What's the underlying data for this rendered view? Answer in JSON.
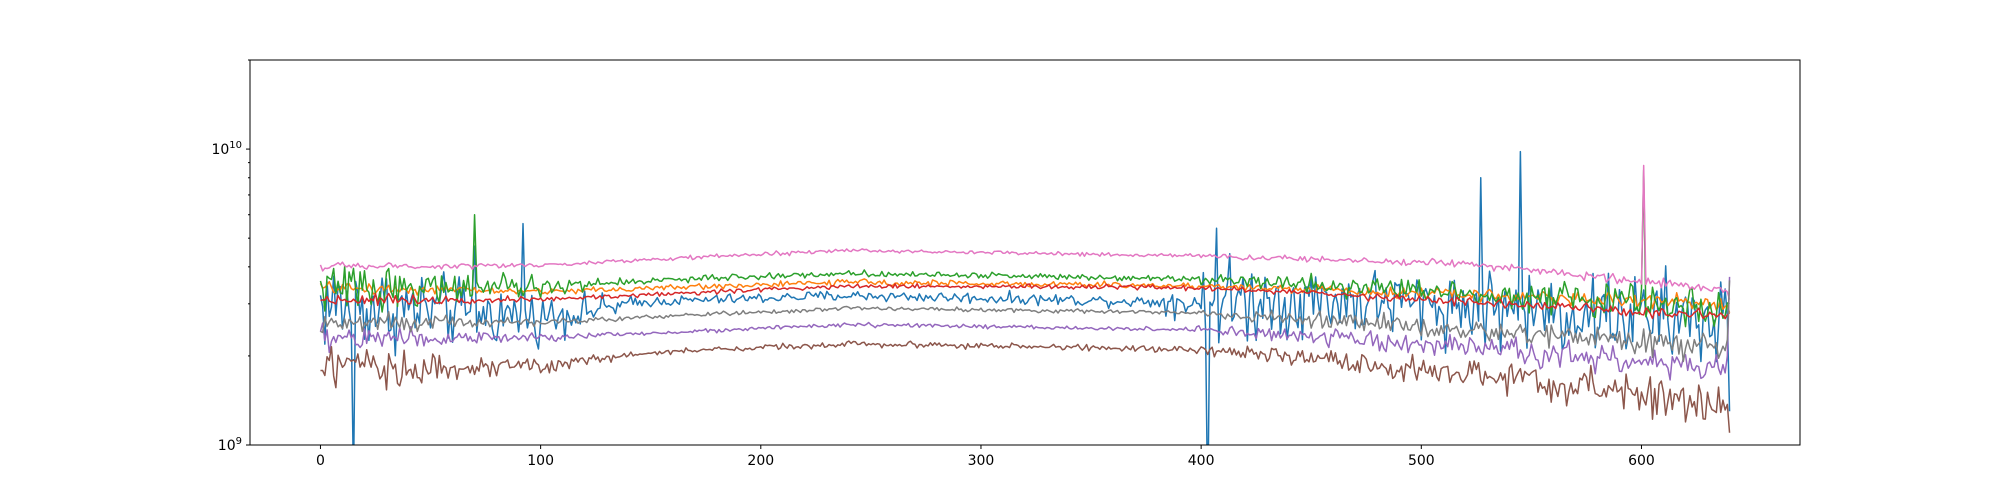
{
  "chart_data": {
    "type": "line",
    "title": "",
    "xlabel": "",
    "ylabel": "",
    "xlim": [
      -32,
      672
    ],
    "ylim": [
      1000000000,
      20000000000
    ],
    "yscale": "log",
    "grid": false,
    "legend": "none",
    "x_ticks": [
      0,
      100,
      200,
      300,
      400,
      500,
      600
    ],
    "x_tick_labels": [
      "0",
      "100",
      "200",
      "300",
      "400",
      "500",
      "600"
    ],
    "y_ticks": [
      1000000000,
      10000000000
    ],
    "y_tick_labels": [
      {
        "base": "10",
        "exp": "9"
      },
      {
        "base": "10",
        "exp": "10"
      }
    ],
    "n_points": 641,
    "series": [
      {
        "color": "#1f77b4",
        "baseline": [
          [
            0,
            3000000000.0
          ],
          [
            100,
            2700000000.0
          ],
          [
            150,
            3050000000.0
          ],
          [
            240,
            3200000000.0
          ],
          [
            380,
            3050000000.0
          ],
          [
            460,
            3100000000.0
          ],
          [
            640,
            2600000000.0
          ]
        ],
        "noise": [
          [
            0,
            0.25
          ],
          [
            100,
            0.12
          ],
          [
            150,
            0.025
          ],
          [
            380,
            0.03
          ],
          [
            410,
            0.22
          ],
          [
            460,
            0.16
          ],
          [
            640,
            0.24
          ]
        ],
        "spikes": [
          [
            70,
            4700000000.0
          ],
          [
            92,
            5600000000.0
          ],
          [
            407,
            5400000000.0
          ],
          [
            545,
            9800000000.0
          ],
          [
            527,
            8000000000.0
          ],
          [
            15,
            750000000.0
          ],
          [
            403,
            600000000.0
          ]
        ],
        "end": 1300000000.0
      },
      {
        "color": "#ff7f0e",
        "baseline": [
          [
            0,
            3400000000.0
          ],
          [
            100,
            3300000000.0
          ],
          [
            240,
            3550000000.0
          ],
          [
            400,
            3450000000.0
          ],
          [
            640,
            3000000000.0
          ]
        ],
        "noise": [
          [
            0,
            0.03
          ],
          [
            100,
            0.015
          ],
          [
            380,
            0.015
          ],
          [
            640,
            0.04
          ]
        ],
        "spikes": [],
        "end": 2800000000.0
      },
      {
        "color": "#2ca02c",
        "baseline": [
          [
            0,
            3400000000.0
          ],
          [
            100,
            3400000000.0
          ],
          [
            150,
            3600000000.0
          ],
          [
            240,
            3800000000.0
          ],
          [
            400,
            3650000000.0
          ],
          [
            640,
            2900000000.0
          ]
        ],
        "noise": [
          [
            0,
            0.12
          ],
          [
            100,
            0.05
          ],
          [
            150,
            0.015
          ],
          [
            380,
            0.015
          ],
          [
            460,
            0.05
          ],
          [
            640,
            0.1
          ]
        ],
        "spikes": [
          [
            70,
            6000000000.0
          ],
          [
            601,
            8500000000.0
          ]
        ],
        "end": 3000000000.0
      },
      {
        "color": "#d62728",
        "baseline": [
          [
            0,
            3100000000.0
          ],
          [
            100,
            3100000000.0
          ],
          [
            240,
            3450000000.0
          ],
          [
            400,
            3400000000.0
          ],
          [
            640,
            2700000000.0
          ]
        ],
        "noise": [
          [
            0,
            0.03
          ],
          [
            100,
            0.012
          ],
          [
            380,
            0.012
          ],
          [
            640,
            0.03
          ]
        ],
        "spikes": [],
        "end": 2800000000.0
      },
      {
        "color": "#9467bd",
        "baseline": [
          [
            0,
            2300000000.0
          ],
          [
            100,
            2300000000.0
          ],
          [
            240,
            2550000000.0
          ],
          [
            400,
            2450000000.0
          ],
          [
            640,
            1800000000.0
          ]
        ],
        "noise": [
          [
            0,
            0.08
          ],
          [
            100,
            0.02
          ],
          [
            150,
            0.01
          ],
          [
            380,
            0.01
          ],
          [
            460,
            0.04
          ],
          [
            640,
            0.09
          ]
        ],
        "spikes": [],
        "end": 3700000000.0
      },
      {
        "color": "#8c564b",
        "baseline": [
          [
            0,
            1800000000.0
          ],
          [
            100,
            1850000000.0
          ],
          [
            150,
            2050000000.0
          ],
          [
            240,
            2200000000.0
          ],
          [
            400,
            2100000000.0
          ],
          [
            640,
            1350000000.0
          ]
        ],
        "noise": [
          [
            0,
            0.12
          ],
          [
            100,
            0.04
          ],
          [
            150,
            0.015
          ],
          [
            380,
            0.015
          ],
          [
            460,
            0.05
          ],
          [
            640,
            0.12
          ]
        ],
        "spikes": [],
        "end": 1100000000.0
      },
      {
        "color": "#e377c2",
        "baseline": [
          [
            0,
            4000000000.0
          ],
          [
            100,
            4050000000.0
          ],
          [
            240,
            4550000000.0
          ],
          [
            400,
            4350000000.0
          ],
          [
            520,
            4100000000.0
          ],
          [
            640,
            3300000000.0
          ]
        ],
        "noise": [
          [
            0,
            0.02
          ],
          [
            100,
            0.01
          ],
          [
            380,
            0.01
          ],
          [
            640,
            0.025
          ]
        ],
        "spikes": [
          [
            601,
            8800000000.0
          ]
        ],
        "end": 3100000000.0
      },
      {
        "color": "#7f7f7f",
        "baseline": [
          [
            0,
            2600000000.0
          ],
          [
            100,
            2600000000.0
          ],
          [
            240,
            2900000000.0
          ],
          [
            400,
            2800000000.0
          ],
          [
            640,
            2100000000.0
          ]
        ],
        "noise": [
          [
            0,
            0.05
          ],
          [
            100,
            0.02
          ],
          [
            150,
            0.01
          ],
          [
            380,
            0.01
          ],
          [
            460,
            0.04
          ],
          [
            640,
            0.07
          ]
        ],
        "spikes": [],
        "end": 3600000000.0
      }
    ]
  }
}
